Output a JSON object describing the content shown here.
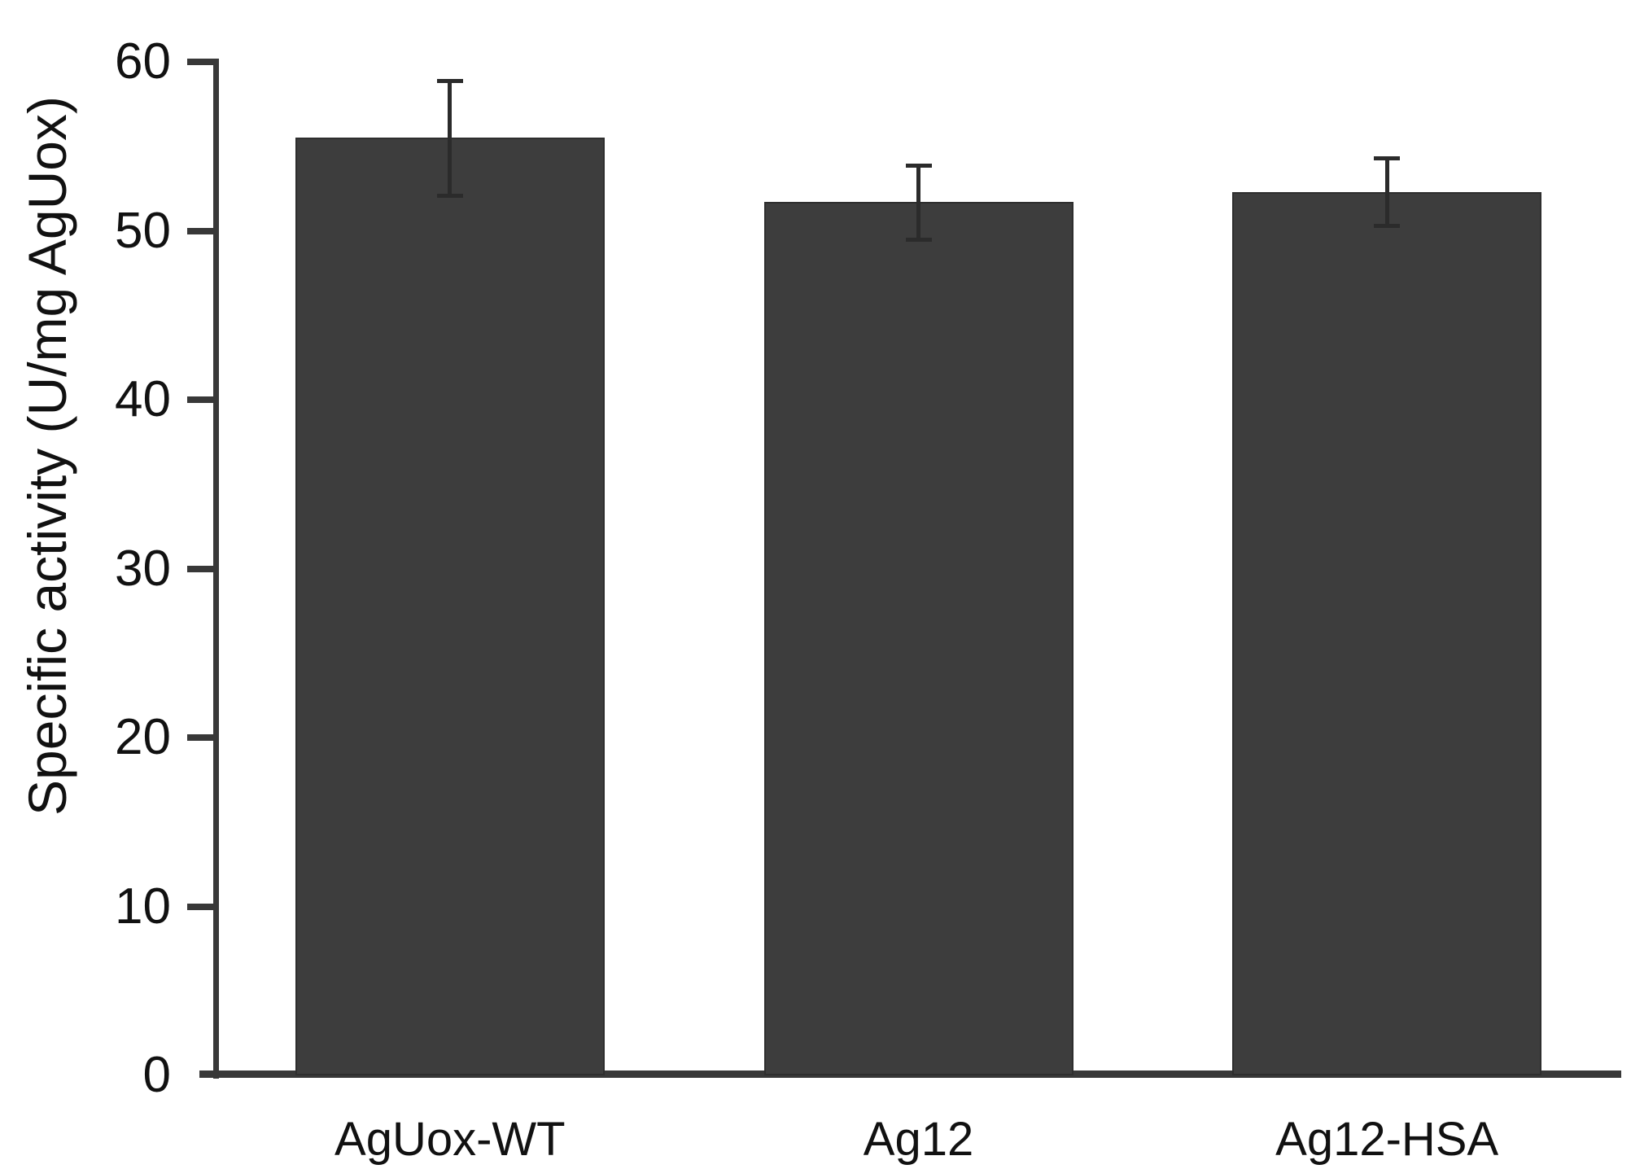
{
  "figure": {
    "background_color": "#ffffff",
    "bar_color": "#3d3d3d",
    "axis_color": "#383838",
    "error_bar_color": "#2b2b2b",
    "text_color": "#111111"
  },
  "chart_data": {
    "type": "bar",
    "title": "",
    "categories": [
      "AgUox-WT",
      "Ag12",
      "Ag12-HSA"
    ],
    "values": [
      55.5,
      51.7,
      52.3
    ],
    "errors": [
      3.4,
      2.2,
      2.0
    ],
    "series_name": "Specific activity",
    "xlabel": "",
    "ylabel": "Specific activity (U/mg AgUox)",
    "ylim": [
      0,
      60
    ],
    "yticks": [
      0,
      10,
      20,
      30,
      40,
      50,
      60
    ],
    "grid": false,
    "legend": null,
    "error_bars": true
  }
}
